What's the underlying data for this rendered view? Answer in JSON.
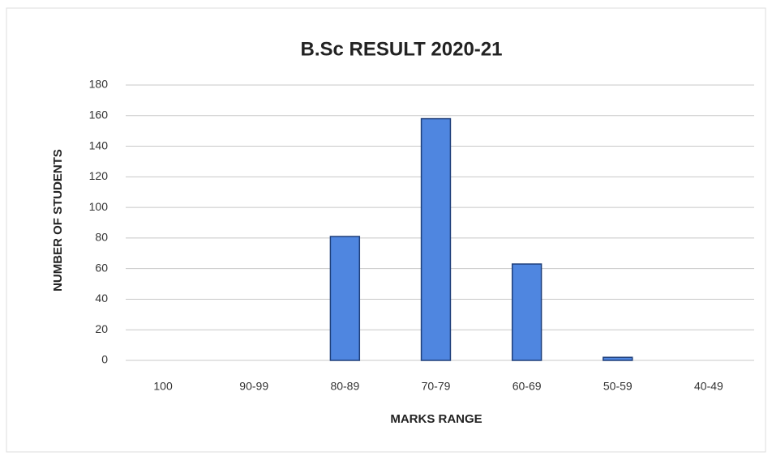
{
  "chart_data": {
    "type": "bar",
    "title": "B.Sc RESULT 2020-21",
    "x_label": "MARKS RANGE",
    "y_label": "NUMBER OF STUDENTS",
    "categories": [
      "100",
      "90-99",
      "80-89",
      "70-79",
      "60-69",
      "50-59",
      "40-49"
    ],
    "values": [
      0,
      0,
      81,
      158,
      63,
      2,
      0
    ],
    "color": "#4f86e0",
    "ylim": [
      0,
      180
    ],
    "yticks": [
      0,
      20,
      40,
      60,
      80,
      100,
      120,
      140,
      160,
      180
    ],
    "grid": true
  }
}
